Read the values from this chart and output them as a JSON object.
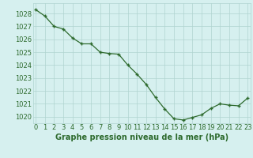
{
  "x": [
    0,
    1,
    2,
    3,
    4,
    5,
    6,
    7,
    8,
    9,
    10,
    11,
    12,
    13,
    14,
    15,
    16,
    17,
    18,
    19,
    20,
    21,
    22,
    23
  ],
  "y": [
    1028.3,
    1027.8,
    1027.0,
    1026.8,
    1026.1,
    1025.65,
    1025.65,
    1025.0,
    1024.9,
    1024.85,
    1024.0,
    1023.3,
    1022.5,
    1021.5,
    1020.6,
    1019.85,
    1019.75,
    1019.95,
    1020.15,
    1020.65,
    1021.0,
    1020.9,
    1020.85,
    1021.45
  ],
  "ylim": [
    1019.5,
    1028.8
  ],
  "xlim": [
    -0.3,
    23.3
  ],
  "yticks": [
    1020,
    1021,
    1022,
    1023,
    1024,
    1025,
    1026,
    1027,
    1028
  ],
  "xticks": [
    0,
    1,
    2,
    3,
    4,
    5,
    6,
    7,
    8,
    9,
    10,
    11,
    12,
    13,
    14,
    15,
    16,
    17,
    18,
    19,
    20,
    21,
    22,
    23
  ],
  "line_color": "#2d6a2d",
  "marker": "+",
  "marker_color": "#2d6a2d",
  "bg_color": "#d6f0ef",
  "grid_color": "#b0d4d0",
  "xlabel": "Graphe pression niveau de la mer (hPa)",
  "xlabel_fontsize": 7.0,
  "tick_fontsize": 6.0,
  "figsize": [
    3.2,
    2.0
  ],
  "dpi": 100
}
